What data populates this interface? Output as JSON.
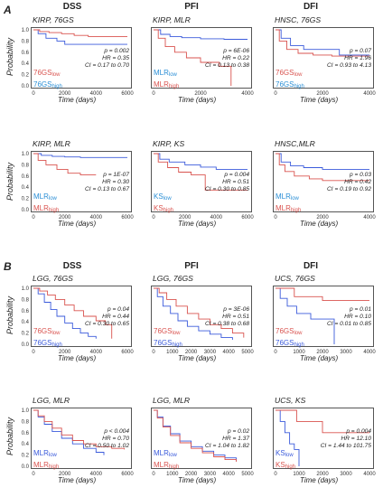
{
  "headers_top": [
    "DSS",
    "PFI",
    "DFI"
  ],
  "headers_bottom": [
    "DSS",
    "PFI",
    "DFI"
  ],
  "section_a": "A",
  "section_b": "B",
  "ylabel": "Probability",
  "colors": {
    "low": "#d9534f",
    "high": "#3b5bdb",
    "low_text_A": "#d9534f",
    "high_text_A": "#2b8fd6"
  },
  "chart_data": [
    {
      "id": "a1",
      "type": "line",
      "title": "KIRP, 76GS",
      "xlabel": "Time (days)",
      "xlim": [
        0,
        6000
      ],
      "xticks": [
        "0",
        "2000",
        "4000",
        "6000"
      ],
      "yticks": [
        "0.0",
        "0.2",
        "0.4",
        "0.6",
        "0.8",
        "1.0"
      ],
      "stats": [
        "p = 0.002",
        "HR = 0.35",
        "CI = 0.17 to 0.70"
      ],
      "legend_pos": "bottom-left",
      "legend": [
        {
          "name": "76GS",
          "sub": "low",
          "color": "#d9534f"
        },
        {
          "name": "76GS",
          "sub": "high",
          "color": "#2b8fd6"
        }
      ],
      "series": [
        {
          "name": "76GS low",
          "color": "#3b5bdb",
          "x": [
            0,
            300,
            800,
            1500,
            2000,
            2500,
            6000
          ],
          "y": [
            1.0,
            0.93,
            0.85,
            0.8,
            0.74,
            0.74,
            0.74
          ]
        },
        {
          "name": "76GS high",
          "color": "#d9534f",
          "x": [
            0,
            400,
            1000,
            1800,
            2600,
            3500,
            6000
          ],
          "y": [
            1.0,
            0.97,
            0.95,
            0.93,
            0.9,
            0.88,
            0.88
          ]
        }
      ]
    },
    {
      "id": "a2",
      "type": "line",
      "title": "KIRP, MLR",
      "xlabel": "Time (days)",
      "xlim": [
        0,
        4000
      ],
      "xticks": [
        "0",
        "2000",
        "4000"
      ],
      "yticks": [],
      "stats": [
        "p = 6E-06",
        "HR = 0.22",
        "CI = 0.13 to 0.38"
      ],
      "legend_pos": "bottom-left",
      "legend": [
        {
          "name": "MLR",
          "sub": "low",
          "color": "#2b8fd6"
        },
        {
          "name": "MLR",
          "sub": "high",
          "color": "#d9534f"
        }
      ],
      "series": [
        {
          "name": "MLR low",
          "color": "#3b5bdb",
          "x": [
            0,
            300,
            700,
            1200,
            2000,
            3000,
            4000
          ],
          "y": [
            1.0,
            0.92,
            0.88,
            0.86,
            0.84,
            0.83,
            0.83
          ]
        },
        {
          "name": "MLR high",
          "color": "#d9534f",
          "x": [
            0,
            200,
            500,
            900,
            1400,
            2000,
            2800,
            3300,
            3300
          ],
          "y": [
            1.0,
            0.85,
            0.7,
            0.6,
            0.5,
            0.42,
            0.35,
            0.35,
            0.0
          ]
        }
      ]
    },
    {
      "id": "a3",
      "type": "line",
      "title": "HNSC, 76GS",
      "xlabel": "Time (days)",
      "xlim": [
        0,
        5000
      ],
      "xticks": [
        "0",
        "2000",
        "4000"
      ],
      "yticks": [],
      "stats": [
        "p = 0.07",
        "HR = 1.96",
        "CI = 0.93 to 4.13"
      ],
      "legend_pos": "bottom-left",
      "legend": [
        {
          "name": "76GS",
          "sub": "low",
          "color": "#d9534f"
        },
        {
          "name": "76GS",
          "sub": "high",
          "color": "#2b8fd6"
        }
      ],
      "series": [
        {
          "name": "76GS low",
          "color": "#3b5bdb",
          "x": [
            0,
            300,
            800,
            1500,
            3400,
            3400,
            5000
          ],
          "y": [
            1.0,
            0.85,
            0.72,
            0.65,
            0.65,
            0.55,
            0.55
          ]
        },
        {
          "name": "76GS high",
          "color": "#d9534f",
          "x": [
            0,
            200,
            600,
            1200,
            2000,
            3000,
            5000
          ],
          "y": [
            1.0,
            0.8,
            0.65,
            0.58,
            0.55,
            0.53,
            0.53
          ]
        }
      ]
    },
    {
      "id": "a4",
      "type": "line",
      "title": "KIRP, MLR",
      "xlabel": "Time (days)",
      "xlim": [
        0,
        6000
      ],
      "xticks": [
        "0",
        "2000",
        "4000",
        "6000"
      ],
      "yticks": [
        "0.0",
        "0.2",
        "0.4",
        "0.6",
        "0.8",
        "1.0"
      ],
      "stats": [
        "p = 1E-07",
        "HR = 0.30",
        "CI = 0.13 to 0.67"
      ],
      "legend_pos": "bottom-left",
      "legend": [
        {
          "name": "MLR",
          "sub": "low",
          "color": "#2b8fd6"
        },
        {
          "name": "MLR",
          "sub": "high",
          "color": "#d9534f"
        }
      ],
      "series": [
        {
          "name": "MLR low",
          "color": "#3b5bdb",
          "x": [
            0,
            500,
            1200,
            2000,
            3000,
            4000,
            6000
          ],
          "y": [
            1.0,
            0.97,
            0.95,
            0.94,
            0.93,
            0.93,
            0.93
          ]
        },
        {
          "name": "MLR high",
          "color": "#d9534f",
          "x": [
            0,
            300,
            800,
            1500,
            2200,
            3000,
            4000
          ],
          "y": [
            1.0,
            0.88,
            0.8,
            0.72,
            0.65,
            0.62,
            0.62
          ]
        }
      ]
    },
    {
      "id": "a5",
      "type": "line",
      "title": "KIRP, KS",
      "xlabel": "Time (days)",
      "xlim": [
        0,
        6000
      ],
      "xticks": [
        "0",
        "2000",
        "4000",
        "6000"
      ],
      "yticks": [],
      "stats": [
        "p = 0.004",
        "HR = 0.51",
        "CI = 0.30 to 0.85"
      ],
      "legend_pos": "bottom-left",
      "legend": [
        {
          "name": "KS",
          "sub": "low",
          "color": "#2b8fd6"
        },
        {
          "name": "KS",
          "sub": "high",
          "color": "#d9534f"
        }
      ],
      "series": [
        {
          "name": "KS low",
          "color": "#3b5bdb",
          "x": [
            0,
            400,
            1000,
            2000,
            3000,
            4000,
            6000
          ],
          "y": [
            1.0,
            0.9,
            0.85,
            0.8,
            0.76,
            0.72,
            0.72
          ]
        },
        {
          "name": "KS high",
          "color": "#d9534f",
          "x": [
            0,
            300,
            900,
            1600,
            2400,
            3300,
            3300,
            6000
          ],
          "y": [
            1.0,
            0.85,
            0.75,
            0.67,
            0.62,
            0.6,
            0.35,
            0.35
          ]
        }
      ]
    },
    {
      "id": "a6",
      "type": "line",
      "title": "HNSC,MLR",
      "xlabel": "Time (days)",
      "xlim": [
        0,
        5000
      ],
      "xticks": [
        "0",
        "2000",
        "4000"
      ],
      "yticks": [],
      "stats": [
        "p = 0.03",
        "HR = 0.42",
        "CI = 0.19 to 0.92"
      ],
      "legend_pos": "bottom-left",
      "legend": [
        {
          "name": "MLR",
          "sub": "low",
          "color": "#2b8fd6"
        },
        {
          "name": "MLR",
          "sub": "high",
          "color": "#d9534f"
        }
      ],
      "series": [
        {
          "name": "MLR low",
          "color": "#3b5bdb",
          "x": [
            0,
            300,
            800,
            1500,
            2500,
            3500,
            5000
          ],
          "y": [
            1.0,
            0.85,
            0.78,
            0.75,
            0.72,
            0.72,
            0.72
          ]
        },
        {
          "name": "MLR high",
          "color": "#d9534f",
          "x": [
            0,
            200,
            500,
            1000,
            1800,
            2500,
            5000
          ],
          "y": [
            1.0,
            0.8,
            0.68,
            0.6,
            0.55,
            0.52,
            0.52
          ]
        }
      ]
    },
    {
      "id": "b1",
      "type": "line",
      "title": "LGG, 76GS",
      "xlabel": "Time (days)",
      "xlim": [
        0,
        6000
      ],
      "xticks": [
        "0",
        "2000",
        "4000",
        "6000"
      ],
      "yticks": [
        "0.0",
        "0.2",
        "0.4",
        "0.6",
        "0.8",
        "1.0"
      ],
      "stats": [
        "p = 0.04",
        "HR = 0.44",
        "CI = 0.30 to 0.65"
      ],
      "legend_pos": "bottom-left",
      "legend": [
        {
          "name": "76GS",
          "sub": "low",
          "color": "#d9534f"
        },
        {
          "name": "76GS",
          "sub": "high",
          "color": "#3b5bdb"
        }
      ],
      "series": [
        {
          "name": "76GS high",
          "color": "#3b5bdb",
          "x": [
            0,
            300,
            700,
            1100,
            1500,
            2000,
            2500,
            3000,
            3500,
            4000
          ],
          "y": [
            1.0,
            0.9,
            0.75,
            0.62,
            0.5,
            0.38,
            0.28,
            0.2,
            0.14,
            0.1
          ]
        },
        {
          "name": "76GS low",
          "color": "#d9534f",
          "x": [
            0,
            400,
            900,
            1400,
            2000,
            2600,
            3200,
            4000,
            4600,
            5000,
            5000
          ],
          "y": [
            1.0,
            0.95,
            0.88,
            0.8,
            0.7,
            0.6,
            0.5,
            0.42,
            0.35,
            0.3,
            0.1
          ]
        }
      ]
    },
    {
      "id": "b2",
      "type": "line",
      "title": "LGG, 76GS",
      "xlabel": "Time (days)",
      "xlim": [
        0,
        5000
      ],
      "xticks": [
        "0",
        "1000",
        "2000",
        "3000",
        "4000",
        "5000"
      ],
      "yticks": [],
      "stats": [
        "p = 3E-06",
        "HR = 0.51",
        "CI = 0.38 to 0.68"
      ],
      "legend_pos": "bottom-left",
      "legend": [
        {
          "name": "76GS",
          "sub": "low",
          "color": "#d9534f"
        },
        {
          "name": "76GS",
          "sub": "high",
          "color": "#3b5bdb"
        }
      ],
      "series": [
        {
          "name": "76GS high",
          "color": "#3b5bdb",
          "x": [
            0,
            200,
            500,
            900,
            1300,
            1800,
            2400,
            3000,
            3600,
            4200
          ],
          "y": [
            1.0,
            0.85,
            0.68,
            0.55,
            0.42,
            0.32,
            0.24,
            0.18,
            0.12,
            0.08
          ]
        },
        {
          "name": "76GS low",
          "color": "#d9534f",
          "x": [
            0,
            300,
            700,
            1200,
            1800,
            2400,
            3000,
            3600,
            4200,
            4800
          ],
          "y": [
            1.0,
            0.92,
            0.8,
            0.68,
            0.55,
            0.45,
            0.35,
            0.28,
            0.2,
            0.12
          ]
        }
      ]
    },
    {
      "id": "b3",
      "type": "line",
      "title": "UCS, 76GS",
      "xlabel": "Time (days)",
      "xlim": [
        0,
        4000
      ],
      "xticks": [
        "0",
        "1000",
        "2000",
        "3000",
        "4000"
      ],
      "yticks": [],
      "stats": [
        "p = 0.01",
        "HR = 0.10",
        "CI = 0.01 to 0.85"
      ],
      "legend_pos": "bottom-left",
      "legend": [
        {
          "name": "76GS",
          "sub": "low",
          "color": "#d9534f"
        },
        {
          "name": "76GS",
          "sub": "high",
          "color": "#3b5bdb"
        }
      ],
      "series": [
        {
          "name": "76GS high",
          "color": "#3b5bdb",
          "x": [
            0,
            200,
            500,
            900,
            1500,
            2500,
            2500
          ],
          "y": [
            1.0,
            0.82,
            0.68,
            0.55,
            0.45,
            0.45,
            0.0
          ]
        },
        {
          "name": "76GS low",
          "color": "#d9534f",
          "x": [
            0,
            800,
            800,
            2000,
            2000,
            4000
          ],
          "y": [
            1.0,
            1.0,
            0.85,
            0.85,
            0.78,
            0.78
          ]
        }
      ]
    },
    {
      "id": "b4",
      "type": "line",
      "title": "LGG, MLR",
      "xlabel": "Time (days)",
      "xlim": [
        0,
        6000
      ],
      "xticks": [
        "0",
        "2000",
        "4000",
        "6000"
      ],
      "yticks": [
        "0.0",
        "0.2",
        "0.4",
        "0.6",
        "0.8",
        "1.0"
      ],
      "stats": [
        "p < 0.004",
        "HR = 0.70",
        "CI = 0.50 to 1.02"
      ],
      "legend_pos": "bottom-left",
      "legend": [
        {
          "name": "MLR",
          "sub": "low",
          "color": "#3b5bdb"
        },
        {
          "name": "MLR",
          "sub": "high",
          "color": "#d9534f"
        }
      ],
      "series": [
        {
          "name": "MLR low",
          "color": "#3b5bdb",
          "x": [
            0,
            300,
            700,
            1200,
            1800,
            2500,
            3200,
            4000,
            4500
          ],
          "y": [
            1.0,
            0.88,
            0.75,
            0.62,
            0.5,
            0.4,
            0.32,
            0.25,
            0.2
          ]
        },
        {
          "name": "MLR high",
          "color": "#d9534f",
          "x": [
            0,
            300,
            700,
            1200,
            1800,
            2500,
            3200,
            4000,
            5000,
            5800
          ],
          "y": [
            1.0,
            0.9,
            0.8,
            0.68,
            0.56,
            0.46,
            0.4,
            0.35,
            0.32,
            0.3
          ]
        }
      ]
    },
    {
      "id": "b5",
      "type": "line",
      "title": "LGG, MLR",
      "xlabel": "Time (days)",
      "xlim": [
        0,
        5000
      ],
      "xticks": [
        "0",
        "1000",
        "2000",
        "3000",
        "4000",
        "5000"
      ],
      "yticks": [],
      "stats": [
        "p = 0.02",
        "HR = 1.37",
        "CI = 1.04 to 1.82"
      ],
      "legend_pos": "bottom-left",
      "legend": [
        {
          "name": "MLR",
          "sub": "low",
          "color": "#3b5bdb"
        },
        {
          "name": "MLR",
          "sub": "high",
          "color": "#d9534f"
        }
      ],
      "series": [
        {
          "name": "MLR low",
          "color": "#3b5bdb",
          "x": [
            0,
            200,
            500,
            900,
            1400,
            2000,
            2600,
            3200,
            3800,
            4400
          ],
          "y": [
            1.0,
            0.88,
            0.72,
            0.58,
            0.45,
            0.35,
            0.27,
            0.2,
            0.15,
            0.1
          ]
        },
        {
          "name": "MLR high",
          "color": "#d9534f",
          "x": [
            0,
            200,
            500,
            900,
            1400,
            2000,
            2600,
            3200,
            3800,
            4400
          ],
          "y": [
            1.0,
            0.86,
            0.7,
            0.55,
            0.42,
            0.32,
            0.24,
            0.17,
            0.12,
            0.08
          ]
        }
      ]
    },
    {
      "id": "b6",
      "type": "line",
      "title": "UCS, KS",
      "xlabel": "Time (days)",
      "xlim": [
        0,
        4000
      ],
      "xticks": [
        "0",
        "1000",
        "2000",
        "3000",
        "4000"
      ],
      "yticks": [],
      "stats": [
        "p = 0.004",
        "HR = 12.10",
        "CI = 1.44 to 101.75"
      ],
      "legend_pos": "bottom-left",
      "legend": [
        {
          "name": "KS",
          "sub": "low",
          "color": "#3b5bdb"
        },
        {
          "name": "KS",
          "sub": "high",
          "color": "#d9534f"
        }
      ],
      "series": [
        {
          "name": "KS low",
          "color": "#3b5bdb",
          "x": [
            0,
            200,
            400,
            600,
            800,
            1000,
            1000
          ],
          "y": [
            1.0,
            0.8,
            0.6,
            0.4,
            0.3,
            0.2,
            0.0
          ]
        },
        {
          "name": "KS high",
          "color": "#d9534f",
          "x": [
            0,
            900,
            900,
            2000,
            2000,
            4000
          ],
          "y": [
            1.0,
            1.0,
            0.8,
            0.8,
            0.6,
            0.6
          ]
        }
      ]
    }
  ]
}
